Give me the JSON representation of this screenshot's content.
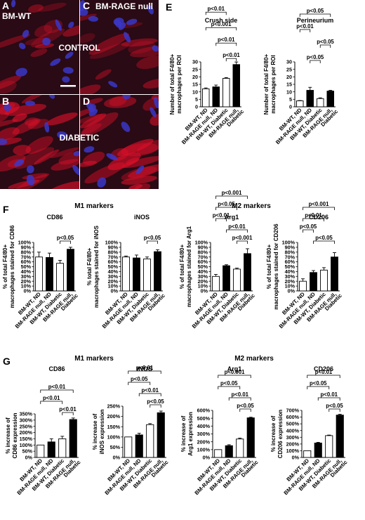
{
  "micrographs": {
    "panels": [
      {
        "letter": "A",
        "caption": "BM-WT",
        "tone": "control"
      },
      {
        "letter": "C",
        "caption": "BM-RAGE null",
        "tone": "control"
      },
      {
        "letter": "B",
        "caption": "",
        "tone": "diabetic"
      },
      {
        "letter": "D",
        "caption": "",
        "tone": "diabetic"
      }
    ],
    "row_labels": [
      "CONTROL",
      "DIABETIC"
    ],
    "colors": {
      "background": "#2a0a14",
      "nuclei": "#3a37c8",
      "stain": "#e0102a"
    }
  },
  "section_labels": {
    "E": "E",
    "F": "F",
    "G": "G"
  },
  "group_headers": {
    "f_m1": "M1 markers",
    "f_m2": "M2 markers",
    "g_m1": "M1 markers",
    "g_m2": "M2 markers"
  },
  "chart_data": [
    {
      "id": "E1",
      "panel": "E",
      "type": "bar",
      "title": "Crush side",
      "ylabel": [
        "Number of total F4/80+",
        "macrophages per ROI"
      ],
      "ylim": [
        0,
        30
      ],
      "yticks": [
        "0",
        "5",
        "10",
        "15",
        "20",
        "25",
        "30"
      ],
      "categories": [
        [
          "BM-WT, ND"
        ],
        [
          "BM-RAGE null, ND"
        ],
        [
          "BM-WT, Diabetic"
        ],
        [
          "BM-RAGE null,",
          "Diabetic"
        ]
      ],
      "values": [
        12,
        13.3,
        19,
        28.2
      ],
      "errors": [
        0.6,
        1.2,
        0.5,
        1.7
      ],
      "fills": [
        "#ffffff",
        "#000000",
        "#ffffff",
        "#000000"
      ],
      "brackets": [
        {
          "from": 2,
          "to": 3,
          "label": "p<0.01"
        },
        {
          "from": 1,
          "to": 3,
          "label": "p<0.01"
        },
        {
          "from": 0,
          "to": 3,
          "label": "p<0.001"
        },
        {
          "from": 0,
          "to": 2,
          "label": "p<0.01"
        },
        {
          "from": 0,
          "to": 3,
          "label": "p<0.001"
        }
      ]
    },
    {
      "id": "E2",
      "panel": "E",
      "type": "bar",
      "title": "Perineurium",
      "ylabel": [
        "Number of total F4/80+",
        "macrophages per ROI"
      ],
      "ylim": [
        0,
        30
      ],
      "yticks": [
        "0",
        "5",
        "10",
        "15",
        "20",
        "25",
        "30"
      ],
      "categories": [
        [
          "BM-WT, ND"
        ],
        [
          "BM-RAGE null, ND"
        ],
        [
          "BM-WT, Diabetic"
        ],
        [
          "BM-RAGE null,",
          "Diabetic"
        ]
      ],
      "values": [
        4,
        11,
        5.5,
        10.5
      ],
      "errors": [
        0.2,
        2.0,
        0.5,
        0.5
      ],
      "fills": [
        "#ffffff",
        "#000000",
        "#ffffff",
        "#000000"
      ],
      "brackets": [
        {
          "from": 1,
          "to": 2,
          "label": "p<0.05"
        },
        {
          "from": 2,
          "to": 3,
          "label": "p<0.05"
        },
        {
          "from": 0,
          "to": 1,
          "label": "p<0.01"
        },
        {
          "from": 0,
          "to": 3,
          "label": "p<0.05"
        }
      ]
    },
    {
      "id": "F1",
      "panel": "F",
      "type": "bar",
      "title": "CD86",
      "ylabel": [
        "% of total F4/80+",
        "macrophages stained for CD86"
      ],
      "ylim": [
        0,
        100
      ],
      "yticks": [
        "0%",
        "10%",
        "20%",
        "30%",
        "40%",
        "50%",
        "60%",
        "70%",
        "80%",
        "90%",
        "100%"
      ],
      "categories": [
        [
          "BM-WT, ND"
        ],
        [
          "BM-RAGE null, ND"
        ],
        [
          "BM-WT, Diabetic"
        ],
        [
          "BM-RAGE null,",
          "Diabetic"
        ]
      ],
      "values": [
        70,
        69,
        57,
        86
      ],
      "errors": [
        10,
        9,
        6,
        4
      ],
      "fills": [
        "#ffffff",
        "#000000",
        "#ffffff",
        "#000000"
      ],
      "brackets": [
        {
          "from": 2,
          "to": 3,
          "label": "p<0.05"
        }
      ]
    },
    {
      "id": "F2",
      "panel": "F",
      "type": "bar",
      "title": "iNOS",
      "ylabel": [
        "% total F4/80+",
        "macrophages stained for iNOS"
      ],
      "ylim": [
        0,
        100
      ],
      "yticks": [
        "0%",
        "10%",
        "20%",
        "30%",
        "40%",
        "50%",
        "60%",
        "70%",
        "80%",
        "90%",
        "100%"
      ],
      "categories": [
        [
          "BM-WT, ND"
        ],
        [
          "BM-RAGE null, ND"
        ],
        [
          "BM-WT, Diabetic"
        ],
        [
          "BM-RAGE null,",
          "Diabetic"
        ]
      ],
      "values": [
        70,
        68,
        66,
        81
      ],
      "errors": [
        2,
        6,
        4,
        4
      ],
      "fills": [
        "#ffffff",
        "#000000",
        "#ffffff",
        "#000000"
      ],
      "brackets": [
        {
          "from": 2,
          "to": 3,
          "label": "p<0.05"
        }
      ]
    },
    {
      "id": "F3",
      "panel": "F",
      "type": "bar",
      "title": "Arg1",
      "ylabel": [
        "% of total F4/80+",
        "macrophages stained for Arg1"
      ],
      "ylim": [
        0,
        100
      ],
      "yticks": [
        "0%",
        "10%",
        "20%",
        "30%",
        "40%",
        "50%",
        "60%",
        "70%",
        "80%",
        "90%",
        "100%"
      ],
      "categories": [
        [
          "BM-WT, ND"
        ],
        [
          "BM-RAGE null, ND"
        ],
        [
          "BM-WT, Diabetic"
        ],
        [
          "BM-RAGE null,",
          "Diabetic"
        ]
      ],
      "values": [
        30,
        52,
        45,
        77
      ],
      "errors": [
        4,
        2,
        2,
        10
      ],
      "fills": [
        "#ffffff",
        "#000000",
        "#ffffff",
        "#000000"
      ],
      "brackets": [
        {
          "from": 2,
          "to": 3,
          "label": "p<0.001"
        },
        {
          "from": 1,
          "to": 3,
          "label": "p<0.01"
        },
        {
          "from": 0,
          "to": 1,
          "label": "p<0.01"
        },
        {
          "from": 0,
          "to": 2,
          "label": "p<0.05"
        },
        {
          "from": 0,
          "to": 3,
          "label": "p<0.001"
        }
      ]
    },
    {
      "id": "F4",
      "panel": "F",
      "type": "bar",
      "title": "CD206",
      "ylabel": [
        "% of total F4/80+",
        "macrophages stained for CD206"
      ],
      "ylim": [
        0,
        100
      ],
      "yticks": [
        "0%",
        "10%",
        "20%",
        "30%",
        "40%",
        "50%",
        "60%",
        "70%",
        "80%",
        "90%",
        "100%"
      ],
      "categories": [
        [
          "BM-WT, ND"
        ],
        [
          "BM-RAGE null, ND"
        ],
        [
          "BM-WT, Diabetic"
        ],
        [
          "BM-RAGE null,",
          "Diabetic"
        ]
      ],
      "values": [
        20,
        38,
        43,
        70
      ],
      "errors": [
        5,
        4,
        5,
        9
      ],
      "fills": [
        "#ffffff",
        "#000000",
        "#ffffff",
        "#000000"
      ],
      "brackets": [
        {
          "from": 1,
          "to": 3,
          "label": "p<0.05"
        },
        {
          "from": 0,
          "to": 1,
          "label": "p<0.05"
        },
        {
          "from": 0,
          "to": 2,
          "label": "p<0.01"
        },
        {
          "from": 0,
          "to": 3,
          "label": "p<0.001"
        }
      ]
    },
    {
      "id": "G1",
      "panel": "G",
      "type": "bar",
      "title": "CD86",
      "ylabel": [
        "% increase of",
        "CD86 expression"
      ],
      "ylim": [
        0,
        350
      ],
      "yticks": [
        "0%",
        "50%",
        "100%",
        "150%",
        "200%",
        "250%",
        "300%",
        "350%"
      ],
      "categories": [
        [
          "BM-WT, ND"
        ],
        [
          "BM-RAGE null, ND"
        ],
        [
          "BM-WT, Diabetic"
        ],
        [
          "BM-RAGE null,",
          "Diabetic"
        ]
      ],
      "values": [
        100,
        125,
        150,
        305
      ],
      "errors": [
        0,
        25,
        20,
        12
      ],
      "fills": [
        "#ffffff",
        "#000000",
        "#ffffff",
        "#000000"
      ],
      "brackets": [
        {
          "from": 2,
          "to": 3,
          "label": "p<0.01"
        },
        {
          "from": 0,
          "to": 2,
          "label": "p<0.01"
        },
        {
          "from": 0,
          "to": 3,
          "label": "p<0.01"
        }
      ]
    },
    {
      "id": "G2",
      "panel": "G",
      "type": "bar",
      "title": "iNOS",
      "ylabel": [
        "% increase of",
        "iNOS expression"
      ],
      "ylim": [
        0,
        250
      ],
      "yticks": [
        "0%",
        "50%",
        "100%",
        "150%",
        "200%",
        "250%"
      ],
      "categories": [
        [
          "BM-WT, ND"
        ],
        [
          "BM-RAGE null, ND"
        ],
        [
          "BM-WT, Diabetic"
        ],
        [
          "BM-RAGE null,",
          "Diabetic"
        ]
      ],
      "values": [
        100,
        110,
        160,
        218
      ],
      "errors": [
        0,
        8,
        5,
        8
      ],
      "fills": [
        "#ffffff",
        "#000000",
        "#ffffff",
        "#000000"
      ],
      "brackets": [
        {
          "from": 2,
          "to": 3,
          "label": "p<0.05"
        },
        {
          "from": 1,
          "to": 3,
          "label": "p<0.01"
        },
        {
          "from": 0,
          "to": 2,
          "label": "p<0.05"
        },
        {
          "from": 0,
          "to": 3,
          "label": "p<0.01"
        }
      ]
    },
    {
      "id": "G3",
      "panel": "G",
      "type": "bar",
      "title": "Arg1",
      "ylabel": [
        "% increase of",
        "Arg1 expression"
      ],
      "ylim": [
        0,
        600
      ],
      "yticks": [
        "0%",
        "100%",
        "200%",
        "300%",
        "400%",
        "500%",
        "600%"
      ],
      "categories": [
        [
          "BM-WT, ND"
        ],
        [
          "BM-RAGE null, ND"
        ],
        [
          "BM-WT, Diabetic"
        ],
        [
          "BM-RAGE null,",
          "Diabetic"
        ]
      ],
      "values": [
        100,
        150,
        235,
        505
      ],
      "errors": [
        0,
        12,
        12,
        8
      ],
      "fills": [
        "#ffffff",
        "#000000",
        "#ffffff",
        "#000000"
      ],
      "brackets": [
        {
          "from": 2,
          "to": 3,
          "label": "p<0.05"
        },
        {
          "from": 1,
          "to": 3,
          "label": "p<0.01"
        },
        {
          "from": 0,
          "to": 2,
          "label": "p<0.05"
        },
        {
          "from": 0,
          "to": 3,
          "label": "p<0.001"
        }
      ]
    },
    {
      "id": "G4",
      "panel": "G",
      "type": "bar",
      "title": "CD206",
      "ylabel": [
        "% increase of",
        "CD206 expression"
      ],
      "ylim": [
        0,
        700
      ],
      "yticks": [
        "0%",
        "100%",
        "200%",
        "300%",
        "400%",
        "500%",
        "600%",
        "700%"
      ],
      "categories": [
        [
          "BM-WT, ND"
        ],
        [
          "BM-RAGE null, ND"
        ],
        [
          "BM-WT, Diabetic"
        ],
        [
          "BM-RAGE null,",
          "Diabetic"
        ]
      ],
      "values": [
        100,
        215,
        325,
        630
      ],
      "errors": [
        0,
        10,
        8,
        12
      ],
      "fills": [
        "#ffffff",
        "#000000",
        "#ffffff",
        "#000000"
      ],
      "brackets": [
        {
          "from": 2,
          "to": 3,
          "label": "p<0.05"
        },
        {
          "from": 1,
          "to": 3,
          "label": "p<0.01"
        },
        {
          "from": 0,
          "to": 2,
          "label": "p<0.05"
        },
        {
          "from": 0,
          "to": 3,
          "label": "p<0.01"
        }
      ]
    }
  ]
}
